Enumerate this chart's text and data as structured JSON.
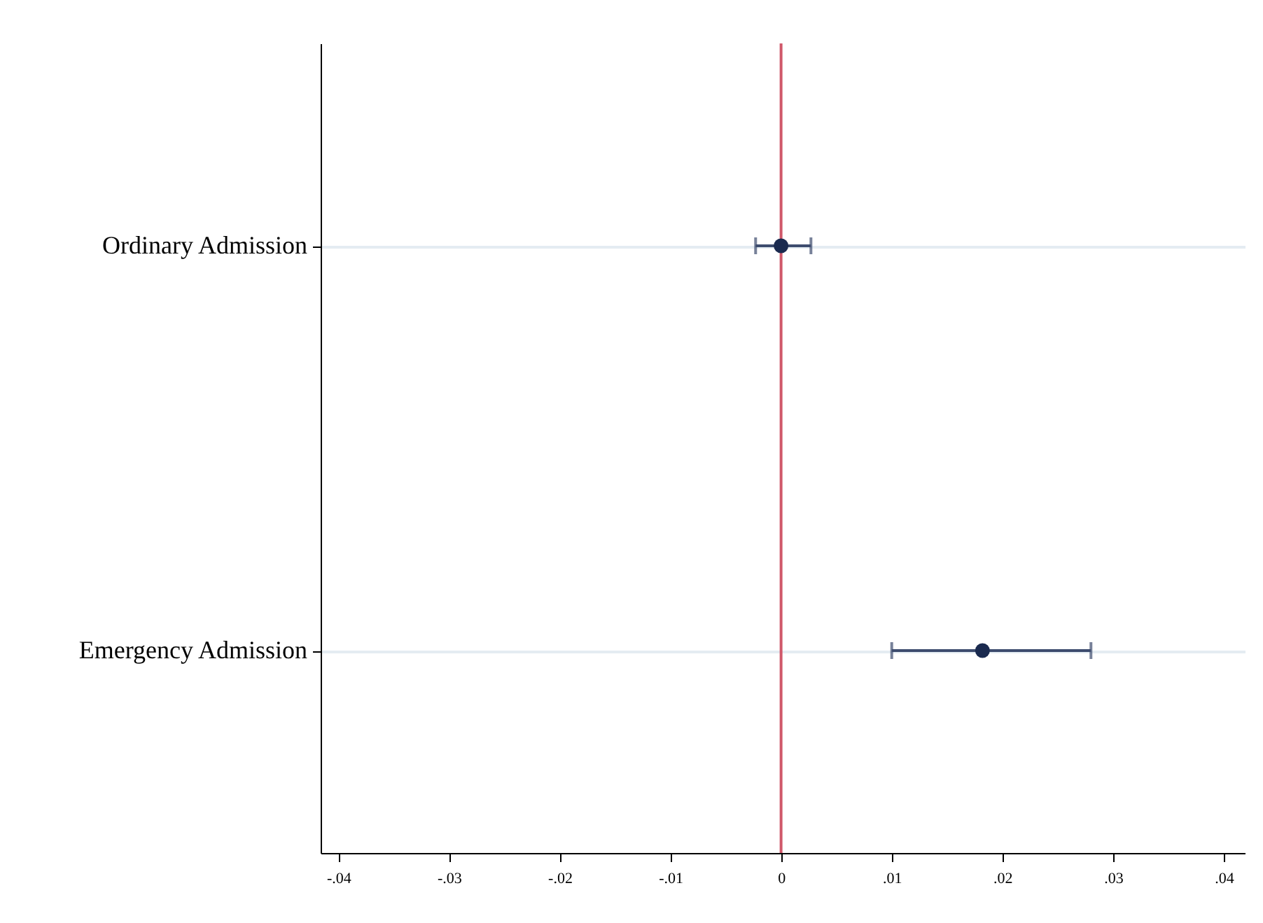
{
  "chart_data": {
    "type": "scatter",
    "orientation": "horizontal",
    "categories": [
      "Ordinary Admission",
      "Emergency Admission"
    ],
    "color": "#1a2a4f",
    "values": [
      0.0,
      0.0182
    ],
    "errors": [
      [
        -0.0023,
        0.0027
      ],
      [
        0.01,
        0.028
      ]
    ],
    "xlim": [
      -0.0416,
      0.0419
    ],
    "xticks": [
      {
        "value": -0.04,
        "label": "-.04"
      },
      {
        "value": -0.03,
        "label": "-.03"
      },
      {
        "value": -0.02,
        "label": "-.02"
      },
      {
        "value": -0.01,
        "label": "-.01"
      },
      0,
      {
        "value": 0.01,
        "label": ".01"
      },
      {
        "value": 0.02,
        "label": ".02"
      },
      {
        "value": 0.03,
        "label": ".03"
      },
      {
        "value": 0.04,
        "label": ".04"
      }
    ],
    "ref_lines": [
      {
        "axis": "x",
        "value": 0,
        "color": "#d0586a"
      }
    ],
    "grid": "y",
    "marker": "circle"
  }
}
